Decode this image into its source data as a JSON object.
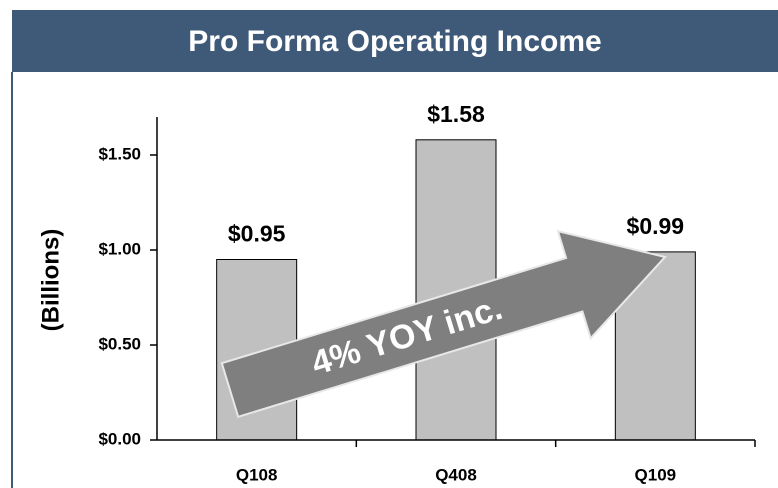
{
  "chart_data": {
    "type": "bar",
    "title": "Pro Forma Operating Income",
    "y_label": "(Billions)",
    "categories": [
      "Q108",
      "Q408",
      "Q109"
    ],
    "values": [
      0.95,
      1.58,
      0.99
    ],
    "value_labels": [
      "$0.95",
      "$1.58",
      "$0.99"
    ],
    "color": "#c0c0c0",
    "ylim": [
      0,
      1.7
    ],
    "yticks": [
      {
        "value": 0,
        "label": "$0.00"
      },
      {
        "value": 0.5,
        "label": "$0.50"
      },
      {
        "value": 1,
        "label": "$1.00"
      },
      {
        "value": 1.5,
        "label": "$1.50"
      }
    ],
    "annotation": "4% YOY inc."
  }
}
